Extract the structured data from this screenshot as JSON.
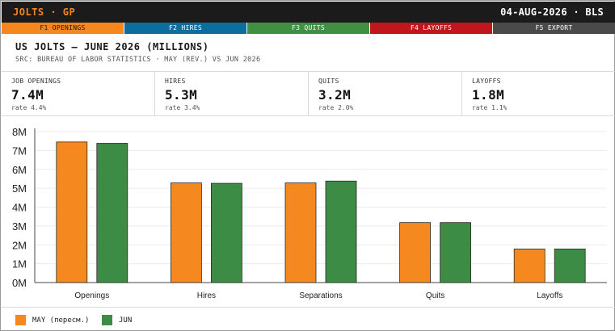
{
  "topbar": {
    "brand": "JOLTS · GP",
    "meta": "04-AUG-2026 · BLS"
  },
  "fkeys": [
    {
      "label": "F1 OPENINGS",
      "color": "#f6871f"
    },
    {
      "label": "F2 HIRES",
      "color": "#0a6f9e"
    },
    {
      "label": "F3 QUITS",
      "color": "#3f8f45"
    },
    {
      "label": "F4 LAYOFFS",
      "color": "#c0161c"
    },
    {
      "label": "F5 EXPORT",
      "color": "#4a4a4a"
    }
  ],
  "header": {
    "title": "US JOLTS — JUNE 2026 (MILLIONS)",
    "source": "SRC: BUREAU OF LABOR STATISTICS · MAY (REV.) VS JUN 2026"
  },
  "stats": [
    {
      "label": "JOB OPENINGS",
      "value": "7.4M",
      "sub": "rate 4.4%"
    },
    {
      "label": "HIRES",
      "value": "5.3M",
      "sub": "rate 3.4%"
    },
    {
      "label": "QUITS",
      "value": "3.2M",
      "sub": "rate 2.0%"
    },
    {
      "label": "LAYOFFS",
      "value": "1.8M",
      "sub": "rate 1.1%"
    }
  ],
  "chart_data": {
    "type": "bar",
    "categories": [
      "Openings",
      "Hires",
      "Separations",
      "Quits",
      "Layoffs"
    ],
    "series": [
      {
        "name": "MAY (пересм.)",
        "color": "#f5891f",
        "values": [
          7.45,
          5.28,
          5.28,
          3.18,
          1.78
        ]
      },
      {
        "name": "JUN",
        "color": "#3d8c45",
        "values": [
          7.38,
          5.26,
          5.38,
          3.18,
          1.78
        ]
      }
    ],
    "yticks": [
      "0M",
      "1M",
      "2M",
      "3M",
      "4M",
      "5M",
      "6M",
      "7M",
      "8M"
    ],
    "ylim": [
      0,
      8
    ],
    "grid": true,
    "legend": "bottom-left"
  }
}
